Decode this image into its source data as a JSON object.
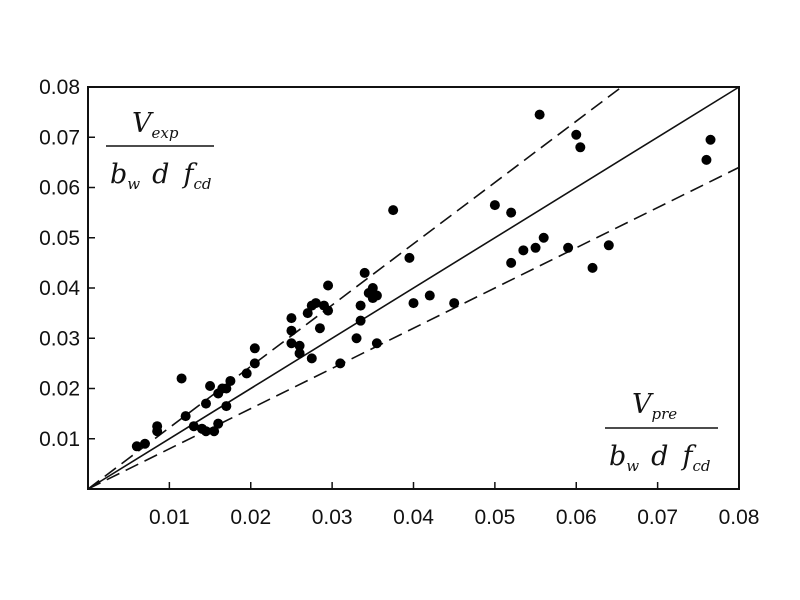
{
  "chart_data": {
    "type": "scatter",
    "title": "",
    "xlim": [
      0,
      0.08
    ],
    "ylim": [
      0,
      0.08
    ],
    "x_ticks": [
      "0.01",
      "0.02",
      "0.03",
      "0.04",
      "0.05",
      "0.06",
      "0.07",
      "0.08"
    ],
    "y_ticks": [
      "0.01",
      "0.02",
      "0.03",
      "0.04",
      "0.05",
      "0.06",
      "0.07",
      "0.08"
    ],
    "ylabel": {
      "numerator": "V",
      "numerator_sub": "exp",
      "den_b": "b",
      "den_b_sub": "w",
      "den_d": "d",
      "den_f": "f",
      "den_f_sub": "cd"
    },
    "xlabel": {
      "numerator": "V",
      "numerator_sub": "pre",
      "den_b": "b",
      "den_b_sub": "w",
      "den_d": "d",
      "den_f": "f",
      "den_f_sub": "cd"
    },
    "lines": [
      {
        "style": "solid",
        "slope": 1.0
      },
      {
        "style": "dashed",
        "slope": 1.22
      },
      {
        "style": "dashed",
        "slope": 0.8
      }
    ],
    "points": [
      [
        0.006,
        0.0085
      ],
      [
        0.007,
        0.009
      ],
      [
        0.0085,
        0.0115
      ],
      [
        0.0085,
        0.0125
      ],
      [
        0.0115,
        0.022
      ],
      [
        0.012,
        0.0145
      ],
      [
        0.013,
        0.0125
      ],
      [
        0.014,
        0.012
      ],
      [
        0.0145,
        0.0115
      ],
      [
        0.0145,
        0.017
      ],
      [
        0.015,
        0.0205
      ],
      [
        0.0155,
        0.0115
      ],
      [
        0.016,
        0.019
      ],
      [
        0.016,
        0.013
      ],
      [
        0.0165,
        0.02
      ],
      [
        0.017,
        0.0165
      ],
      [
        0.017,
        0.02
      ],
      [
        0.0175,
        0.0215
      ],
      [
        0.0195,
        0.023
      ],
      [
        0.0205,
        0.025
      ],
      [
        0.0205,
        0.028
      ],
      [
        0.025,
        0.029
      ],
      [
        0.025,
        0.0315
      ],
      [
        0.025,
        0.034
      ],
      [
        0.026,
        0.027
      ],
      [
        0.026,
        0.0285
      ],
      [
        0.027,
        0.035
      ],
      [
        0.0275,
        0.026
      ],
      [
        0.0275,
        0.0365
      ],
      [
        0.028,
        0.037
      ],
      [
        0.0285,
        0.032
      ],
      [
        0.029,
        0.0365
      ],
      [
        0.0295,
        0.0405
      ],
      [
        0.0295,
        0.0355
      ],
      [
        0.031,
        0.025
      ],
      [
        0.033,
        0.03
      ],
      [
        0.0335,
        0.0335
      ],
      [
        0.0335,
        0.0365
      ],
      [
        0.034,
        0.043
      ],
      [
        0.0345,
        0.039
      ],
      [
        0.035,
        0.038
      ],
      [
        0.035,
        0.04
      ],
      [
        0.0355,
        0.029
      ],
      [
        0.0355,
        0.0385
      ],
      [
        0.0375,
        0.0555
      ],
      [
        0.0395,
        0.046
      ],
      [
        0.04,
        0.037
      ],
      [
        0.042,
        0.0385
      ],
      [
        0.045,
        0.037
      ],
      [
        0.05,
        0.0565
      ],
      [
        0.052,
        0.055
      ],
      [
        0.052,
        0.045
      ],
      [
        0.0535,
        0.0475
      ],
      [
        0.055,
        0.048
      ],
      [
        0.0555,
        0.0745
      ],
      [
        0.056,
        0.05
      ],
      [
        0.059,
        0.048
      ],
      [
        0.06,
        0.0705
      ],
      [
        0.0605,
        0.068
      ],
      [
        0.062,
        0.044
      ],
      [
        0.064,
        0.0485
      ],
      [
        0.076,
        0.0655
      ],
      [
        0.0765,
        0.0695
      ]
    ]
  }
}
